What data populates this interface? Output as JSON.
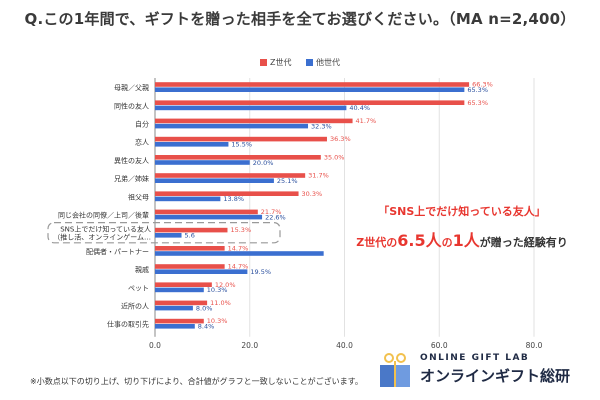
{
  "title": "Q.この1年間で、ギフトを贈った相手を全てお選びください。（MA n=2,400）",
  "footnote": "※小数点以下の切り上げ、切り下げにより、合計値がグラフと一致しないことがございます。",
  "callout": {
    "line1": "「SNS上でだけ知っている友人」",
    "line2_prefix": "Z世代の",
    "line2_big1": "6.5人",
    "line2_mid": "の",
    "line2_big2": "1人",
    "line2_suffix": "が贈った経験有り"
  },
  "logo": {
    "top": "ONLINE GIFT LAB",
    "main": "オンラインギフト総研"
  },
  "colors": {
    "z": "#e8504a",
    "other": "#3b6fd0",
    "highlight": "#e8362f",
    "grid": "#e2e2e2"
  },
  "chart_data": {
    "type": "bar",
    "orientation": "horizontal",
    "categories": [
      "母親／父親",
      "同性の友人",
      "自分",
      "恋人",
      "異性の友人",
      "兄弟／姉妹",
      "祖父母",
      "同じ会社の同僚／上司／後輩",
      "SNS上でだけ知っている友人（推し活、オンラインゲーム…",
      "配偶者・パートナー",
      "親戚",
      "ペット",
      "近所の人",
      "仕事の取引先"
    ],
    "series": [
      {
        "name": "Z世代",
        "values": [
          66.3,
          65.3,
          41.7,
          36.3,
          35.0,
          31.7,
          30.3,
          21.7,
          15.3,
          14.7,
          14.7,
          12.0,
          11.0,
          10.3
        ]
      },
      {
        "name": "他世代",
        "values": [
          65.3,
          40.4,
          32.3,
          15.5,
          20.0,
          25.1,
          13.8,
          22.6,
          5.6,
          35.6,
          19.5,
          10.3,
          8.0,
          8.4
        ]
      }
    ],
    "z_labels": [
      "66.3%",
      "65.3%",
      "41.7%",
      "36.3%",
      "35.0%",
      "31.7%",
      "30.3%",
      "21.7%",
      "15.3%",
      "14.7%",
      "14.7%",
      "12.0%",
      "11.0%",
      "10.3%"
    ],
    "other_labels": [
      "65.3%",
      "40.4%",
      "32.3%",
      "15.5%",
      "20.0%",
      "25.1%",
      "13.8%",
      "22.6%",
      "5.6",
      "",
      "19.5%",
      "10.3%",
      "8.0%",
      "8.4%"
    ],
    "highlight_index": 8,
    "xlim": [
      0,
      80
    ],
    "xticks": [
      "0.0",
      "20.0",
      "40.0",
      "60.0",
      "80.0"
    ],
    "grid": true,
    "legend_position": "top"
  }
}
